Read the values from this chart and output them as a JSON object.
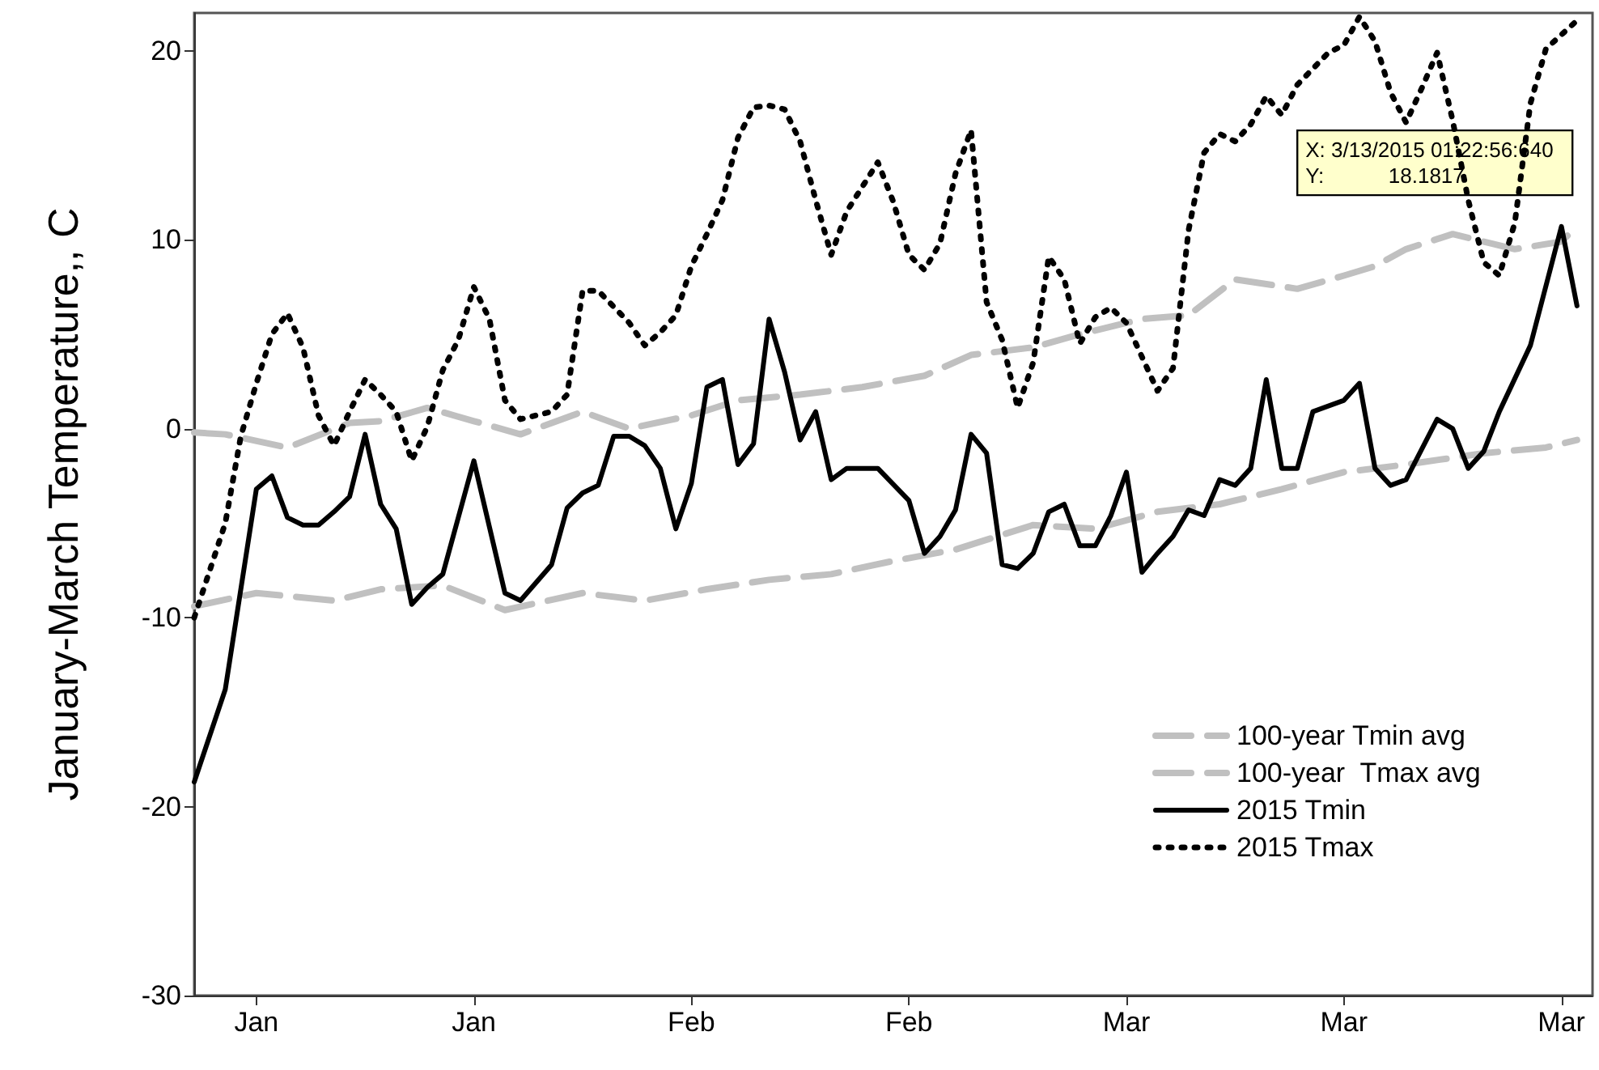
{
  "chart_data": {
    "type": "line",
    "ylabel": "January-March Temperature,, C",
    "xlim": [
      "2015-01-01",
      "2015-04-01"
    ],
    "xticks": [
      {
        "value": "2015-01-05",
        "label": "Jan"
      },
      {
        "value": "2015-01-19",
        "label": "Jan"
      },
      {
        "value": "2015-02-02",
        "label": "Feb"
      },
      {
        "value": "2015-02-16",
        "label": "Feb"
      },
      {
        "value": "2015-03-02",
        "label": "Mar"
      },
      {
        "value": "2015-03-16",
        "label": "Mar"
      },
      {
        "value": "2015-03-30",
        "label": "Mar"
      }
    ],
    "ylim": [
      -30,
      22
    ],
    "yticks": [
      -30,
      -20,
      -10,
      0,
      10,
      20
    ],
    "grid": false,
    "legend": "bottom right",
    "marker": "none",
    "annotations": [
      {
        "text": "X: 3/13/2015 01:22:56:640\nY:           18.1817",
        "x": "2015-03-13",
        "y": 18.1817
      }
    ],
    "series": [
      {
        "name": "100-year Tmin avg",
        "color": "#c0c0c0",
        "line_style": "dashed",
        "x": [
          "2015-01-01",
          "2015-01-05",
          "2015-01-10",
          "2015-01-13",
          "2015-01-17",
          "2015-01-21",
          "2015-01-26",
          "2015-01-30",
          "2015-02-03",
          "2015-02-07",
          "2015-02-11",
          "2015-02-15",
          "2015-02-19",
          "2015-02-24",
          "2015-02-28",
          "2015-03-04",
          "2015-03-08",
          "2015-03-12",
          "2015-03-16",
          "2015-03-20",
          "2015-03-25",
          "2015-03-29",
          "2015-03-31"
        ],
        "values": [
          -9.4,
          -8.7,
          -9.1,
          -8.5,
          -8.3,
          -9.6,
          -8.7,
          -9.1,
          -8.5,
          -8.0,
          -7.7,
          -7.0,
          -6.4,
          -5.1,
          -5.3,
          -4.4,
          -4.0,
          -3.2,
          -2.3,
          -1.9,
          -1.3,
          -1.0,
          -0.6
        ]
      },
      {
        "name": "100-year  Tmax avg",
        "color": "#c0c0c0",
        "line_style": "dashed",
        "x": [
          "2015-01-01",
          "2015-01-03",
          "2015-01-07",
          "2015-01-11",
          "2015-01-13",
          "2015-01-16",
          "2015-01-19",
          "2015-01-22",
          "2015-01-26",
          "2015-01-29",
          "2015-02-02",
          "2015-02-05",
          "2015-02-09",
          "2015-02-13",
          "2015-02-17",
          "2015-02-20",
          "2015-02-24",
          "2015-02-27",
          "2015-03-03",
          "2015-03-06",
          "2015-03-09",
          "2015-03-13",
          "2015-03-16",
          "2015-03-18",
          "2015-03-20",
          "2015-03-23",
          "2015-03-27",
          "2015-03-30",
          "2015-03-31"
        ],
        "values": [
          -0.2,
          -0.3,
          -1.0,
          0.3,
          0.4,
          1.1,
          0.4,
          -0.3,
          0.9,
          0,
          0.7,
          1.5,
          1.8,
          2.2,
          2.8,
          3.9,
          4.3,
          5.0,
          5.8,
          6.0,
          7.9,
          7.4,
          8.1,
          8.6,
          9.5,
          10.3,
          9.5,
          9.9,
          10.7
        ]
      },
      {
        "name": "2015 Tmin",
        "color": "#000000",
        "line_style": "solid",
        "x": [
          "2015-01-01",
          "2015-01-03",
          "2015-01-05",
          "2015-01-06",
          "2015-01-07",
          "2015-01-08",
          "2015-01-09",
          "2015-01-10",
          "2015-01-11",
          "2015-01-12",
          "2015-01-13",
          "2015-01-14",
          "2015-01-15",
          "2015-01-16",
          "2015-01-17",
          "2015-01-19",
          "2015-01-21",
          "2015-01-22",
          "2015-01-24",
          "2015-01-25",
          "2015-01-26",
          "2015-01-27",
          "2015-01-28",
          "2015-01-29",
          "2015-01-30",
          "2015-01-31",
          "2015-02-01",
          "2015-02-02",
          "2015-02-03",
          "2015-02-04",
          "2015-02-05",
          "2015-02-06",
          "2015-02-07",
          "2015-02-08",
          "2015-02-09",
          "2015-02-10",
          "2015-02-11",
          "2015-02-12",
          "2015-02-14",
          "2015-02-16",
          "2015-02-17",
          "2015-02-18",
          "2015-02-19",
          "2015-02-20",
          "2015-02-21",
          "2015-02-22",
          "2015-02-23",
          "2015-02-24",
          "2015-02-25",
          "2015-02-26",
          "2015-02-27",
          "2015-02-28",
          "2015-03-01",
          "2015-03-02",
          "2015-03-03",
          "2015-03-04",
          "2015-03-05",
          "2015-03-06",
          "2015-03-07",
          "2015-03-08",
          "2015-03-09",
          "2015-03-10",
          "2015-03-11",
          "2015-03-12",
          "2015-03-13",
          "2015-03-14",
          "2015-03-16",
          "2015-03-17",
          "2015-03-18",
          "2015-03-19",
          "2015-03-20",
          "2015-03-22",
          "2015-03-23",
          "2015-03-24",
          "2015-03-25",
          "2015-03-26",
          "2015-03-28",
          "2015-03-30",
          "2015-03-31"
        ],
        "values": [
          -18.7,
          -13.8,
          -3.2,
          -2.5,
          -4.7,
          -5.1,
          -5.1,
          -4.4,
          -3.6,
          -0.3,
          -4.0,
          -5.3,
          -9.3,
          -8.4,
          -7.7,
          -1.7,
          -8.7,
          -9.1,
          -7.2,
          -4.2,
          -3.4,
          -3.0,
          -0.4,
          -0.4,
          -0.9,
          -2.1,
          -5.3,
          -2.9,
          2.2,
          2.6,
          -1.9,
          -0.8,
          5.8,
          3.0,
          -0.6,
          0.9,
          -2.7,
          -2.1,
          -2.1,
          -3.8,
          -6.6,
          -5.7,
          -4.3,
          -0.3,
          -1.3,
          -7.2,
          -7.4,
          -6.6,
          -4.4,
          -4.0,
          -6.2,
          -6.2,
          -4.6,
          -2.3,
          -7.6,
          -6.6,
          -5.7,
          -4.3,
          -4.6,
          -2.7,
          -3.0,
          -2.1,
          2.6,
          -2.1,
          -2.1,
          0.9,
          1.5,
          2.4,
          -2.1,
          -3.0,
          -2.7,
          0.5,
          0,
          -2.1,
          -1.2,
          0.9,
          4.4,
          10.7,
          6.5
        ]
      },
      {
        "name": "2015 Tmax",
        "color": "#000000",
        "line_style": "dotted",
        "x": [
          "2015-01-01",
          "2015-01-03",
          "2015-01-04",
          "2015-01-05",
          "2015-01-06",
          "2015-01-07",
          "2015-01-08",
          "2015-01-09",
          "2015-01-10",
          "2015-01-11",
          "2015-01-12",
          "2015-01-13",
          "2015-01-14",
          "2015-01-15",
          "2015-01-16",
          "2015-01-17",
          "2015-01-18",
          "2015-01-19",
          "2015-01-20",
          "2015-01-21",
          "2015-01-22",
          "2015-01-24",
          "2015-01-25",
          "2015-01-26",
          "2015-01-27",
          "2015-01-29",
          "2015-01-30",
          "2015-01-31",
          "2015-02-01",
          "2015-02-02",
          "2015-02-03",
          "2015-02-04",
          "2015-02-05",
          "2015-02-06",
          "2015-02-07",
          "2015-02-08",
          "2015-02-09",
          "2015-02-10",
          "2015-02-11",
          "2015-02-12",
          "2015-02-14",
          "2015-02-15",
          "2015-02-16",
          "2015-02-17",
          "2015-02-18",
          "2015-02-19",
          "2015-02-20",
          "2015-02-21",
          "2015-02-22",
          "2015-02-23",
          "2015-02-24",
          "2015-02-25",
          "2015-02-26",
          "2015-02-27",
          "2015-02-28",
          "2015-03-01",
          "2015-03-02",
          "2015-03-03",
          "2015-03-04",
          "2015-03-05",
          "2015-03-06",
          "2015-03-07",
          "2015-03-08",
          "2015-03-09",
          "2015-03-10",
          "2015-03-11",
          "2015-03-12",
          "2015-03-13",
          "2015-03-15",
          "2015-03-16",
          "2015-03-17",
          "2015-03-18",
          "2015-03-19",
          "2015-03-20",
          "2015-03-21",
          "2015-03-22",
          "2015-03-23",
          "2015-03-24",
          "2015-03-25",
          "2015-03-26",
          "2015-03-27",
          "2015-03-28",
          "2015-03-29",
          "2015-03-31"
        ],
        "values": [
          -10.0,
          -5.0,
          -0.4,
          2.4,
          5.0,
          6.1,
          4.3,
          0.7,
          -0.9,
          0.9,
          2.6,
          1.8,
          0.9,
          -1.7,
          0.1,
          3.1,
          4.7,
          7.5,
          5.8,
          1.5,
          0.5,
          0.9,
          1.8,
          7.3,
          7.3,
          5.6,
          4.4,
          5.1,
          6.0,
          8.6,
          10.3,
          12.1,
          15.4,
          17.0,
          17.1,
          16.9,
          15.2,
          12.1,
          9.2,
          11.5,
          14.1,
          12.0,
          9.2,
          8.4,
          9.8,
          13.5,
          15.8,
          6.7,
          4.7,
          1.1,
          3.5,
          9.1,
          7.9,
          4.5,
          5.9,
          6.4,
          5.6,
          3.8,
          2.0,
          3.2,
          10.5,
          14.6,
          15.6,
          15.2,
          16.1,
          17.6,
          16.6,
          18.2,
          19.9,
          20.3,
          21.8,
          20.5,
          17.8,
          16.2,
          18.0,
          19.9,
          16.3,
          12.1,
          8.8,
          8.1,
          10.9,
          17.2,
          20.1,
          21.6
        ]
      }
    ]
  }
}
